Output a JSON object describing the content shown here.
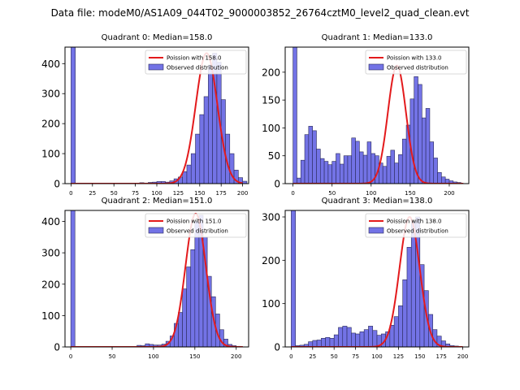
{
  "figure": {
    "suptitle": "Data file: modeM0/AS1A09_044T02_9000003852_26764cztM0_level2_quad_clean.evt"
  },
  "colors": {
    "bar_fill": "#7373e6",
    "bar_edge": "#2a2a5a",
    "poisson_line": "#e31a1c",
    "axis": "#000000"
  },
  "chart_data": [
    {
      "type": "bar",
      "title": "Quadrant 0: Median=158.0",
      "legend": {
        "placement": "top-right",
        "line_label": "Poission with 158.0",
        "bar_label": "Observed distribution"
      },
      "xlim": [
        -7,
        207
      ],
      "ylim": [
        0,
        455
      ],
      "xticks": [
        0,
        25,
        50,
        75,
        100,
        125,
        150,
        175,
        200
      ],
      "yticks": [
        0,
        100,
        200,
        300,
        400
      ],
      "bin_width": 5,
      "poisson_mean": 158,
      "poisson_peak": 435,
      "bins": [
        [
          0,
          455
        ],
        [
          80,
          3
        ],
        [
          85,
          2
        ],
        [
          90,
          4
        ],
        [
          95,
          5
        ],
        [
          100,
          7
        ],
        [
          105,
          7
        ],
        [
          110,
          5
        ],
        [
          115,
          9
        ],
        [
          120,
          16
        ],
        [
          125,
          22
        ],
        [
          130,
          40
        ],
        [
          135,
          62
        ],
        [
          140,
          100
        ],
        [
          145,
          165
        ],
        [
          150,
          230
        ],
        [
          155,
          290
        ],
        [
          160,
          395
        ],
        [
          165,
          435
        ],
        [
          170,
          405
        ],
        [
          175,
          280
        ],
        [
          180,
          165
        ],
        [
          185,
          100
        ],
        [
          190,
          45
        ],
        [
          195,
          20
        ],
        [
          200,
          8
        ]
      ]
    },
    {
      "type": "bar",
      "title": "Quadrant 1: Median=133.0",
      "legend": {
        "placement": "top-right",
        "line_label": "Poission with 133.0",
        "bar_label": "Observed distribution"
      },
      "xlim": [
        -10,
        225
      ],
      "ylim": [
        0,
        245
      ],
      "xticks": [
        0,
        50,
        100,
        150,
        200
      ],
      "yticks": [
        0,
        50,
        100,
        150,
        200
      ],
      "bin_width": 5,
      "poisson_mean": 133,
      "poisson_peak": 212,
      "bins": [
        [
          0,
          245
        ],
        [
          5,
          10
        ],
        [
          10,
          42
        ],
        [
          15,
          88
        ],
        [
          20,
          103
        ],
        [
          25,
          95
        ],
        [
          30,
          62
        ],
        [
          35,
          45
        ],
        [
          40,
          40
        ],
        [
          45,
          34
        ],
        [
          50,
          40
        ],
        [
          55,
          54
        ],
        [
          60,
          35
        ],
        [
          65,
          50
        ],
        [
          70,
          50
        ],
        [
          75,
          82
        ],
        [
          80,
          76
        ],
        [
          85,
          57
        ],
        [
          90,
          51
        ],
        [
          95,
          75
        ],
        [
          100,
          54
        ],
        [
          105,
          50
        ],
        [
          110,
          37
        ],
        [
          115,
          31
        ],
        [
          120,
          49
        ],
        [
          125,
          60
        ],
        [
          130,
          37
        ],
        [
          135,
          52
        ],
        [
          140,
          80
        ],
        [
          145,
          105
        ],
        [
          150,
          152
        ],
        [
          155,
          192
        ],
        [
          160,
          178
        ],
        [
          165,
          118
        ],
        [
          170,
          135
        ],
        [
          175,
          75
        ],
        [
          180,
          46
        ],
        [
          185,
          20
        ],
        [
          190,
          12
        ],
        [
          195,
          8
        ],
        [
          200,
          5
        ],
        [
          205,
          3
        ],
        [
          210,
          2
        ]
      ]
    },
    {
      "type": "bar",
      "title": "Quadrant 2: Median=151.0",
      "legend": {
        "placement": "top-right",
        "line_label": "Poission with 151.0",
        "bar_label": "Observed distribution"
      },
      "xlim": [
        -7,
        215
      ],
      "ylim": [
        0,
        435
      ],
      "xticks": [
        0,
        50,
        100,
        150,
        200
      ],
      "yticks": [
        0,
        100,
        200,
        300,
        400
      ],
      "bin_width": 5,
      "poisson_mean": 151,
      "poisson_peak": 425,
      "bins": [
        [
          0,
          435
        ],
        [
          80,
          5
        ],
        [
          85,
          4
        ],
        [
          90,
          10
        ],
        [
          95,
          8
        ],
        [
          100,
          6
        ],
        [
          105,
          6
        ],
        [
          110,
          9
        ],
        [
          115,
          18
        ],
        [
          120,
          35
        ],
        [
          125,
          75
        ],
        [
          130,
          110
        ],
        [
          135,
          185
        ],
        [
          140,
          255
        ],
        [
          145,
          310
        ],
        [
          150,
          400
        ],
        [
          155,
          420
        ],
        [
          160,
          350
        ],
        [
          165,
          225
        ],
        [
          170,
          160
        ],
        [
          175,
          105
        ],
        [
          180,
          55
        ],
        [
          185,
          25
        ],
        [
          190,
          8
        ],
        [
          195,
          4
        ],
        [
          200,
          2
        ]
      ]
    },
    {
      "type": "bar",
      "title": "Quadrant 3: Median=138.0",
      "legend": {
        "placement": "top-right",
        "line_label": "Poission with 138.0",
        "bar_label": "Observed distribution"
      },
      "xlim": [
        -7,
        207
      ],
      "ylim": [
        0,
        315
      ],
      "xticks": [
        0,
        25,
        50,
        75,
        100,
        125,
        150,
        175,
        200
      ],
      "yticks": [
        0,
        100,
        200,
        300
      ],
      "bin_width": 5,
      "poisson_mean": 138,
      "poisson_peak": 300,
      "bins": [
        [
          0,
          315
        ],
        [
          5,
          3
        ],
        [
          10,
          4
        ],
        [
          15,
          6
        ],
        [
          20,
          12
        ],
        [
          25,
          15
        ],
        [
          30,
          16
        ],
        [
          35,
          20
        ],
        [
          40,
          22
        ],
        [
          45,
          20
        ],
        [
          50,
          28
        ],
        [
          55,
          45
        ],
        [
          60,
          48
        ],
        [
          65,
          45
        ],
        [
          70,
          32
        ],
        [
          75,
          30
        ],
        [
          80,
          35
        ],
        [
          85,
          40
        ],
        [
          90,
          48
        ],
        [
          95,
          38
        ],
        [
          100,
          27
        ],
        [
          105,
          30
        ],
        [
          110,
          35
        ],
        [
          115,
          50
        ],
        [
          120,
          70
        ],
        [
          125,
          95
        ],
        [
          130,
          155
        ],
        [
          135,
          230
        ],
        [
          140,
          290
        ],
        [
          145,
          300
        ],
        [
          150,
          190
        ],
        [
          155,
          130
        ],
        [
          160,
          75
        ],
        [
          165,
          40
        ],
        [
          170,
          25
        ],
        [
          175,
          14
        ],
        [
          180,
          7
        ],
        [
          185,
          3
        ],
        [
          190,
          2
        ]
      ]
    }
  ]
}
